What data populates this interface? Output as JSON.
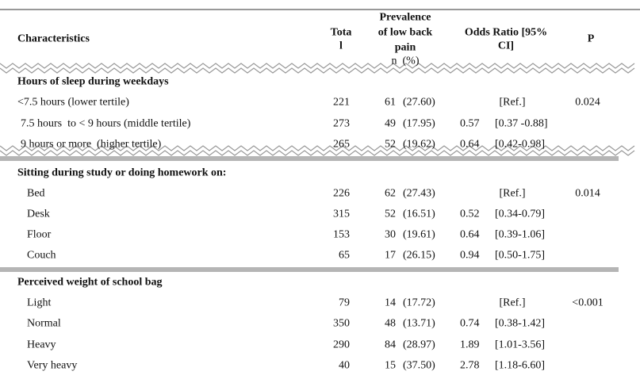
{
  "header": {
    "characteristics": "Characteristics",
    "total": [
      "Tota",
      "l"
    ],
    "prevalence": [
      "Prevalence",
      "of low back",
      "pain"
    ],
    "n_pct": "n  (%)",
    "odds_ratio": [
      "Odds Ratio [95%",
      "CI]"
    ],
    "p": "P"
  },
  "sections": [
    {
      "title": "Hours of sleep during weekdays",
      "rows": [
        {
          "label": "<7.5 hours (lower tertile)",
          "total": 221,
          "n": 61,
          "pct": "(27.60)",
          "or": null,
          "ci": "[Ref.]",
          "p": 0.024
        },
        {
          "label": "7.5 hours  to < 9 hours (middle tertile)",
          "total": 273,
          "n": 49,
          "pct": "(17.95)",
          "or": 0.57,
          "ci": "[0.37 -0.88]",
          "p": null
        },
        {
          "label": "9 hours or more  (higher tertile)",
          "total": 265,
          "n": 52,
          "pct": "(19.62)",
          "or": 0.64,
          "ci": "[0.42-0.98]",
          "p": null
        }
      ]
    },
    {
      "title": "Sitting during study or doing homework on:",
      "rows": [
        {
          "label": "Bed",
          "total": 226,
          "n": 62,
          "pct": "(27.43)",
          "or": null,
          "ci": "[Ref.]",
          "p": 0.014
        },
        {
          "label": "Desk",
          "total": 315,
          "n": 52,
          "pct": "(16.51)",
          "or": 0.52,
          "ci": "[0.34-0.79]",
          "p": null
        },
        {
          "label": "Floor",
          "total": 153,
          "n": 30,
          "pct": "(19.61)",
          "or": 0.64,
          "ci": "[0.39-1.06]",
          "p": null
        },
        {
          "label": "Couch",
          "total": 65,
          "n": 17,
          "pct": "(26.15)",
          "or": 0.94,
          "ci": "[0.50-1.75]",
          "p": null
        }
      ]
    },
    {
      "title": "Perceived weight of school bag",
      "rows": [
        {
          "label": "Light",
          "total": 79,
          "n": 14,
          "pct": "(17.72)",
          "or": null,
          "ci": "[Ref.]",
          "p": "<0.001"
        },
        {
          "label": "Normal",
          "total": 350,
          "n": 48,
          "pct": "(13.71)",
          "or": 0.74,
          "ci": "[0.38-1.42]",
          "p": null
        },
        {
          "label": "Heavy",
          "total": 290,
          "n": 84,
          "pct": "(28.97)",
          "or": 1.89,
          "ci": "[1.01-3.56]",
          "p": null
        },
        {
          "label": "Very heavy",
          "total": 40,
          "n": 15,
          "pct": "(37.50)",
          "or": 2.78,
          "ci": "[1.18-6.60]",
          "p": null
        }
      ]
    }
  ]
}
